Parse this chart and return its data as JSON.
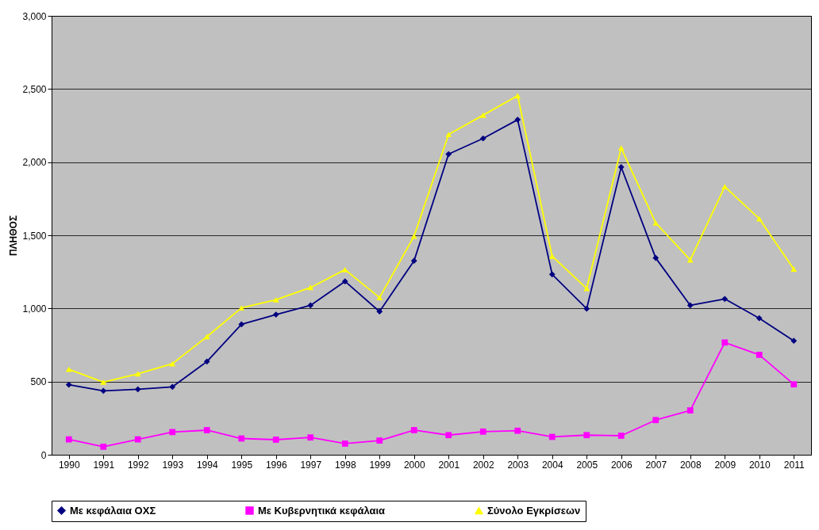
{
  "chart_data": {
    "type": "line",
    "ylabel": "ΠΛΗΘΟΣ",
    "categories": [
      "1990",
      "1991",
      "1992",
      "1993",
      "1994",
      "1995",
      "1996",
      "1997",
      "1998",
      "1999",
      "2000",
      "2001",
      "2002",
      "2003",
      "2004",
      "2005",
      "2006",
      "2007",
      "2008",
      "2009",
      "2010",
      "2011"
    ],
    "series": [
      {
        "name": "Με κεφάλαια ΟΧΣ",
        "color": "#000080",
        "marker": "diamond",
        "values": [
          479,
          437,
          447,
          464,
          637,
          891,
          958,
          1021,
          1185,
          979,
          1326,
          2055,
          2162,
          2290,
          1233,
          998,
          1966,
          1345,
          1021,
          1065,
          933,
          779
        ]
      },
      {
        "name": "Με Κυβερνητικά κεφάλαια",
        "color": "#ff00ff",
        "marker": "square",
        "values": [
          105,
          55,
          105,
          155,
          168,
          111,
          103,
          118,
          76,
          97,
          168,
          134,
          158,
          164,
          122,
          134,
          130,
          237,
          303,
          767,
          683,
          481
        ]
      },
      {
        "name": "Σύνολο Εγκρίσεων",
        "color": "#ffff00",
        "marker": "triangle",
        "values": [
          584,
          496,
          553,
          622,
          807,
          1004,
          1059,
          1143,
          1265,
          1074,
          1494,
          2189,
          2321,
          2454,
          1357,
          1137,
          2097,
          1584,
          1332,
          1832,
          1613,
          1269
        ]
      }
    ],
    "ylim": [
      0,
      3000
    ],
    "yticks": [
      0,
      500,
      {
        "value": 1000,
        "label": "1,000"
      },
      {
        "value": 1500,
        "label": "1,500"
      },
      {
        "value": 2000,
        "label": "2,000"
      },
      {
        "value": 2500,
        "label": "2,500"
      },
      {
        "value": 3000,
        "label": "3,000"
      }
    ],
    "grid": "y",
    "legend": "bottom",
    "line_style": "solid"
  }
}
